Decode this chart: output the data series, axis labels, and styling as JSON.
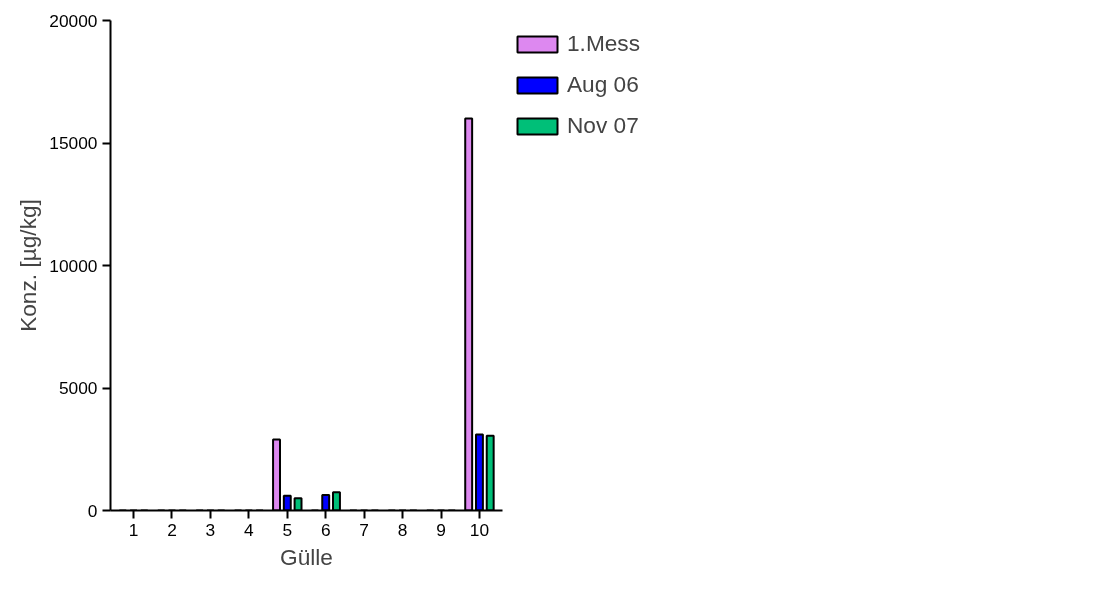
{
  "chart_data": {
    "type": "bar",
    "xlabel": "Gülle",
    "ylabel": "Konz. [µg/kg]",
    "categories": [
      "1",
      "2",
      "3",
      "4",
      "5",
      "6",
      "7",
      "8",
      "9",
      "10"
    ],
    "series": [
      {
        "name": "1.Mess",
        "color": "#dd88f0",
        "values": [
          0,
          0,
          0,
          0,
          2900,
          0,
          0,
          0,
          0,
          16000
        ]
      },
      {
        "name": "Aug 06",
        "color": "#0000ff",
        "values": [
          0,
          0,
          0,
          0,
          600,
          630,
          0,
          0,
          0,
          3100
        ]
      },
      {
        "name": "Nov 07",
        "color": "#00bf78",
        "values": [
          0,
          0,
          0,
          0,
          500,
          750,
          0,
          0,
          0,
          3050
        ]
      }
    ],
    "ylim": [
      0,
      20000
    ],
    "yticks": [
      0,
      5000,
      10000,
      15000,
      20000
    ],
    "grid": false,
    "legend": "top right"
  }
}
